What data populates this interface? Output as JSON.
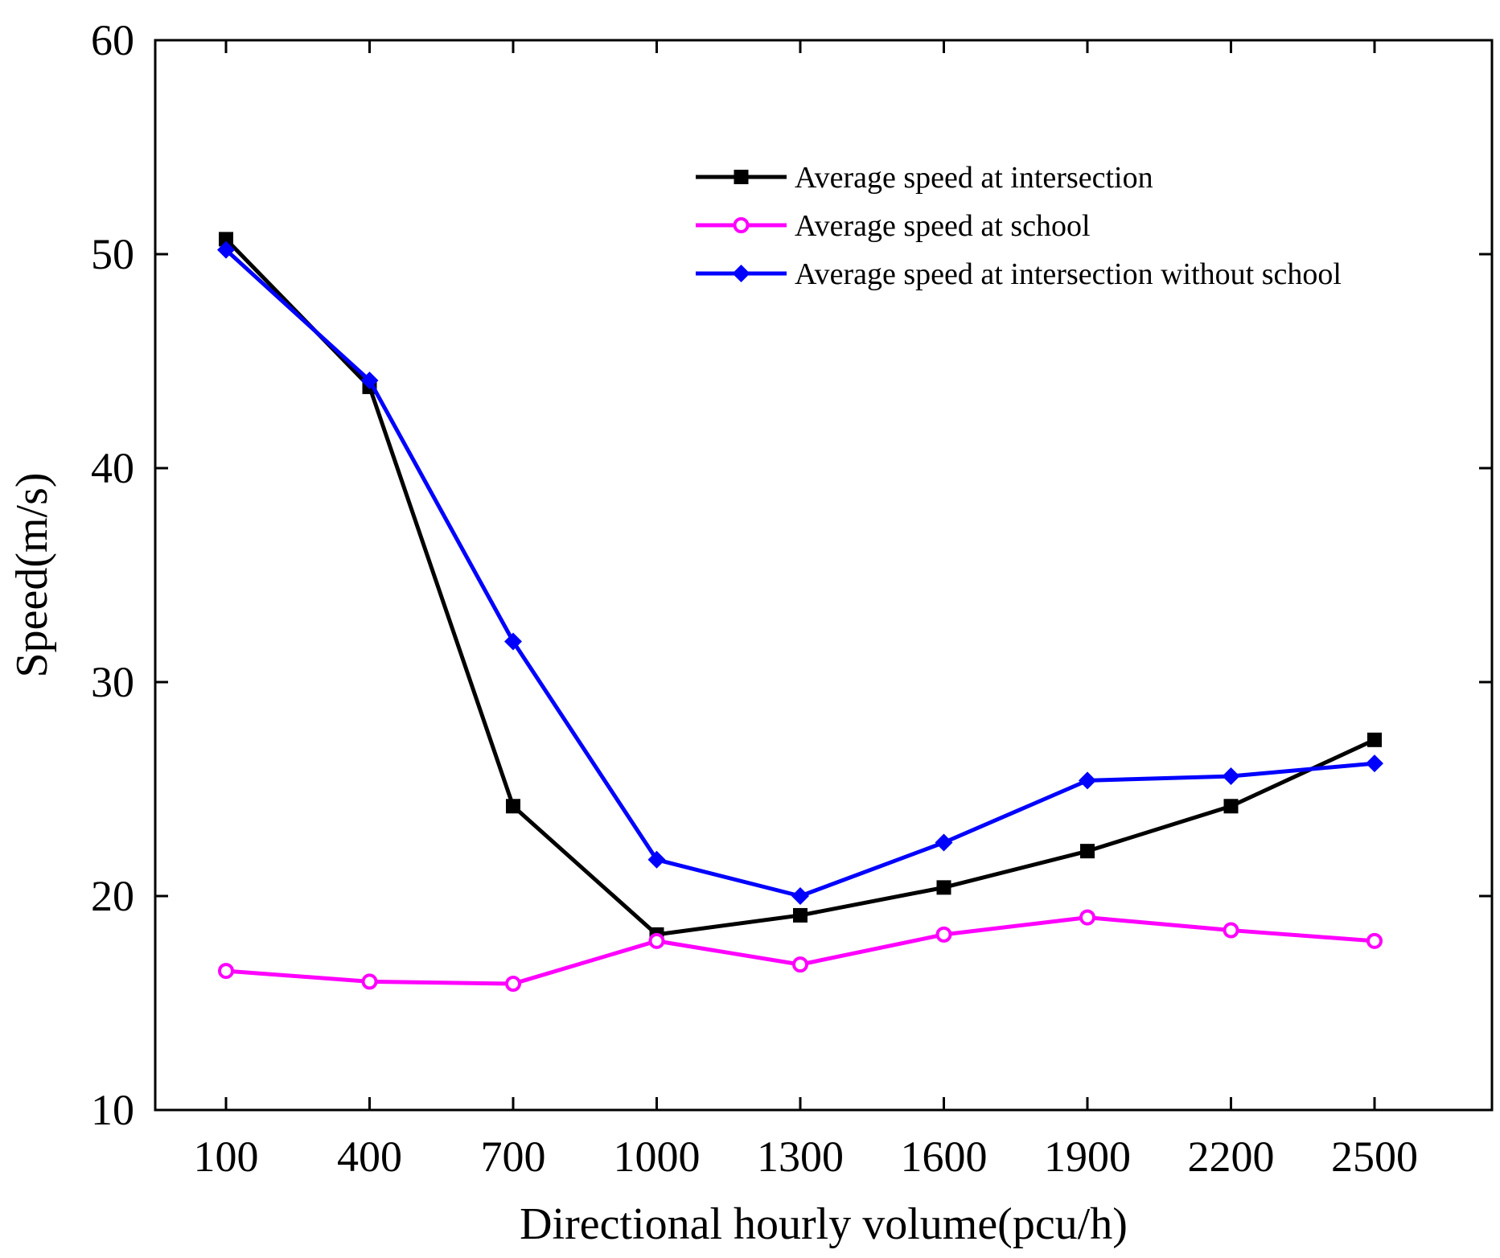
{
  "chart_data": {
    "type": "line",
    "title": "",
    "xlabel": "Directional hourly volume(pcu/h)",
    "ylabel": "Speed(m/s)",
    "categories": [
      "100",
      "400",
      "700",
      "1000",
      "1300",
      "1600",
      "1900",
      "2200",
      "2500"
    ],
    "ylim": [
      10,
      60
    ],
    "yticks": [
      "10",
      "20",
      "30",
      "40",
      "50",
      "60"
    ],
    "grid": false,
    "legend_position": "top-right",
    "series": [
      {
        "name": "Average speed at intersection",
        "color": "#000000",
        "marker": "square",
        "values": [
          50.7,
          43.8,
          24.2,
          18.2,
          19.1,
          20.4,
          22.1,
          24.2,
          27.3
        ]
      },
      {
        "name": "Average speed at school",
        "color": "#ff00ff",
        "marker": "circle",
        "values": [
          16.5,
          16.0,
          15.9,
          17.9,
          16.8,
          18.2,
          19.0,
          18.4,
          17.9
        ]
      },
      {
        "name": "Average speed at intersection without school",
        "color": "#0000ff",
        "marker": "diamond",
        "values": [
          50.2,
          44.1,
          31.9,
          21.7,
          20.0,
          22.5,
          25.4,
          25.6,
          26.2
        ]
      }
    ]
  }
}
